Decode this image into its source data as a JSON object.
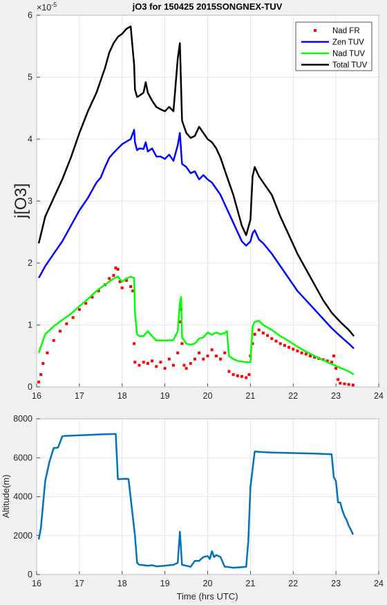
{
  "chart_data": [
    {
      "type": "line",
      "title": "jO3 for 150425 2015SONGNEX-TUV",
      "ylabel": "j[O3]",
      "xlabel": "",
      "y_exponent_label": "×10",
      "y_exponent": "-5",
      "xlim": [
        16,
        24
      ],
      "ylim": [
        0,
        6
      ],
      "x_ticks": [
        16,
        17,
        18,
        19,
        20,
        21,
        22,
        23,
        24
      ],
      "y_ticks": [
        0,
        1,
        2,
        3,
        4,
        5,
        6
      ],
      "grid": true,
      "legend_position": "top-right",
      "series": [
        {
          "name": "Nad FR",
          "style": "markers",
          "color": "#ff0000",
          "x": [
            16.05,
            16.1,
            16.15,
            16.25,
            16.4,
            16.55,
            16.7,
            16.85,
            17.0,
            17.15,
            17.3,
            17.45,
            17.6,
            17.7,
            17.8,
            17.85,
            17.9,
            17.95,
            18.0,
            18.1,
            18.2,
            18.25,
            18.28,
            18.3,
            18.4,
            18.5,
            18.6,
            18.7,
            18.8,
            18.9,
            19.0,
            19.1,
            19.2,
            19.3,
            19.35,
            19.38,
            19.4,
            19.45,
            19.5,
            19.6,
            19.7,
            19.8,
            19.9,
            20.0,
            20.1,
            20.2,
            20.3,
            20.4,
            20.5,
            20.6,
            20.7,
            20.8,
            20.9,
            20.97,
            21.0,
            21.05,
            21.1,
            21.2,
            21.3,
            21.4,
            21.5,
            21.6,
            21.7,
            21.8,
            21.9,
            22.0,
            22.1,
            22.2,
            22.3,
            22.4,
            22.5,
            22.6,
            22.7,
            22.8,
            22.9,
            22.95,
            23.0,
            23.05,
            23.1,
            23.2,
            23.3,
            23.4
          ],
          "y": [
            0.08,
            0.2,
            0.38,
            0.55,
            0.75,
            0.9,
            1.02,
            1.12,
            1.25,
            1.35,
            1.45,
            1.55,
            1.65,
            1.75,
            1.8,
            1.92,
            1.9,
            1.7,
            1.6,
            1.72,
            1.62,
            1.55,
            0.7,
            0.4,
            0.35,
            0.4,
            0.38,
            0.42,
            0.33,
            0.4,
            0.3,
            0.45,
            0.35,
            0.55,
            1.05,
            1.25,
            0.7,
            0.35,
            0.3,
            0.38,
            0.45,
            0.55,
            0.45,
            0.5,
            0.6,
            0.5,
            0.45,
            0.55,
            0.25,
            0.2,
            0.18,
            0.17,
            0.15,
            0.2,
            0.5,
            0.7,
            0.85,
            0.92,
            0.87,
            0.83,
            0.78,
            0.74,
            0.7,
            0.67,
            0.64,
            0.61,
            0.58,
            0.55,
            0.53,
            0.5,
            0.48,
            0.46,
            0.44,
            0.42,
            0.4,
            0.5,
            0.3,
            0.12,
            0.06,
            0.05,
            0.04,
            0.03
          ]
        },
        {
          "name": "Zen TUV",
          "style": "line",
          "color": "#0000ff",
          "x": [
            16.05,
            16.2,
            16.4,
            16.6,
            16.8,
            17.0,
            17.2,
            17.4,
            17.5,
            17.6,
            17.7,
            17.8,
            17.9,
            18.0,
            18.1,
            18.2,
            18.28,
            18.3,
            18.35,
            18.4,
            18.5,
            18.55,
            18.6,
            18.7,
            18.8,
            18.9,
            19.0,
            19.1,
            19.2,
            19.3,
            19.35,
            19.4,
            19.5,
            19.6,
            19.7,
            19.8,
            19.9,
            20.0,
            20.1,
            20.2,
            20.3,
            20.4,
            20.5,
            20.6,
            20.7,
            20.8,
            20.9,
            21.0,
            21.05,
            21.1,
            21.2,
            21.3,
            21.5,
            21.7,
            21.9,
            22.1,
            22.3,
            22.5,
            22.7,
            22.9,
            23.1,
            23.3,
            23.42
          ],
          "y": [
            1.76,
            1.95,
            2.15,
            2.35,
            2.6,
            2.85,
            3.05,
            3.3,
            3.38,
            3.55,
            3.7,
            3.78,
            3.85,
            3.92,
            3.96,
            4.0,
            4.15,
            3.95,
            3.82,
            3.85,
            3.84,
            3.95,
            3.8,
            3.85,
            3.72,
            3.72,
            3.68,
            3.75,
            3.65,
            3.9,
            4.1,
            3.6,
            3.55,
            3.45,
            3.48,
            3.35,
            3.42,
            3.35,
            3.3,
            3.2,
            3.1,
            2.95,
            2.8,
            2.65,
            2.5,
            2.35,
            2.28,
            2.35,
            2.48,
            2.53,
            2.38,
            2.32,
            2.15,
            1.95,
            1.75,
            1.55,
            1.4,
            1.25,
            1.1,
            0.95,
            0.82,
            0.7,
            0.62
          ]
        },
        {
          "name": "Nad TUV",
          "style": "line",
          "color": "#00ff00",
          "x": [
            16.05,
            16.2,
            16.4,
            16.6,
            16.8,
            17.0,
            17.2,
            17.4,
            17.6,
            17.8,
            17.9,
            18.0,
            18.1,
            18.2,
            18.28,
            18.3,
            18.35,
            18.4,
            18.5,
            18.6,
            18.7,
            18.8,
            18.9,
            19.0,
            19.1,
            19.2,
            19.3,
            19.35,
            19.38,
            19.4,
            19.5,
            19.6,
            19.7,
            19.8,
            19.9,
            20.0,
            20.1,
            20.2,
            20.3,
            20.4,
            20.45,
            20.5,
            20.6,
            20.7,
            20.8,
            20.9,
            21.0,
            21.05,
            21.1,
            21.2,
            21.3,
            21.5,
            21.7,
            21.9,
            22.1,
            22.3,
            22.5,
            22.7,
            22.9,
            23.1,
            23.3,
            23.42
          ],
          "y": [
            0.55,
            0.85,
            0.98,
            1.08,
            1.18,
            1.3,
            1.42,
            1.55,
            1.65,
            1.75,
            1.78,
            1.7,
            1.75,
            1.78,
            1.76,
            1.2,
            0.85,
            0.82,
            0.82,
            0.9,
            0.82,
            0.75,
            0.75,
            0.75,
            0.75,
            0.76,
            0.9,
            1.35,
            1.45,
            0.8,
            0.7,
            0.68,
            0.7,
            0.78,
            0.8,
            0.88,
            0.84,
            0.88,
            0.85,
            0.87,
            0.9,
            0.5,
            0.45,
            0.42,
            0.41,
            0.4,
            0.4,
            0.98,
            1.05,
            1.07,
            1.0,
            0.92,
            0.82,
            0.74,
            0.65,
            0.57,
            0.5,
            0.43,
            0.37,
            0.31,
            0.25,
            0.2
          ]
        },
        {
          "name": "Total TUV",
          "style": "line",
          "color": "#000000",
          "x": [
            16.05,
            16.2,
            16.4,
            16.6,
            16.8,
            17.0,
            17.2,
            17.4,
            17.5,
            17.6,
            17.7,
            17.8,
            17.9,
            18.0,
            18.1,
            18.2,
            18.28,
            18.3,
            18.35,
            18.4,
            18.5,
            18.55,
            18.6,
            18.7,
            18.8,
            18.9,
            19.0,
            19.1,
            19.2,
            19.3,
            19.35,
            19.4,
            19.5,
            19.6,
            19.7,
            19.8,
            19.9,
            20.0,
            20.1,
            20.2,
            20.3,
            20.4,
            20.5,
            20.6,
            20.7,
            20.8,
            20.9,
            21.0,
            21.05,
            21.1,
            21.2,
            21.3,
            21.5,
            21.7,
            21.9,
            22.1,
            22.3,
            22.5,
            22.7,
            22.9,
            23.1,
            23.3,
            23.42
          ],
          "y": [
            2.32,
            2.75,
            3.05,
            3.35,
            3.7,
            4.1,
            4.45,
            4.75,
            4.95,
            5.15,
            5.4,
            5.55,
            5.65,
            5.7,
            5.78,
            5.82,
            5.2,
            4.8,
            4.68,
            4.7,
            4.75,
            4.92,
            4.75,
            4.62,
            4.52,
            4.48,
            4.45,
            4.52,
            4.45,
            5.3,
            5.55,
            4.3,
            4.1,
            4.02,
            4.05,
            4.2,
            4.1,
            4.0,
            3.95,
            3.85,
            3.7,
            3.5,
            3.3,
            3.1,
            2.85,
            2.6,
            2.45,
            2.7,
            3.4,
            3.55,
            3.4,
            3.3,
            3.1,
            2.75,
            2.45,
            2.15,
            1.9,
            1.65,
            1.4,
            1.2,
            1.05,
            0.92,
            0.82
          ]
        }
      ]
    },
    {
      "type": "line",
      "title": "",
      "xlabel": "Time (hrs UTC)",
      "ylabel": "Altitude(m)",
      "xlim": [
        16,
        24
      ],
      "ylim": [
        0,
        8000
      ],
      "x_ticks": [
        16,
        17,
        18,
        19,
        20,
        21,
        22,
        23,
        24
      ],
      "y_ticks": [
        0,
        2000,
        4000,
        6000,
        8000
      ],
      "grid": true,
      "series": [
        {
          "color": "#0072bd",
          "x": [
            16.05,
            16.1,
            16.15,
            16.2,
            16.3,
            16.4,
            16.5,
            16.55,
            16.6,
            16.65,
            17.0,
            17.5,
            17.85,
            17.9,
            18.1,
            18.15,
            18.3,
            18.35,
            18.4,
            18.5,
            18.6,
            18.7,
            18.8,
            19.0,
            19.2,
            19.3,
            19.35,
            19.4,
            19.5,
            19.6,
            19.7,
            19.8,
            19.9,
            20.0,
            20.05,
            20.1,
            20.15,
            20.2,
            20.3,
            20.4,
            20.45,
            20.5,
            20.6,
            20.8,
            20.9,
            20.95,
            21.0,
            21.1,
            21.2,
            21.5,
            22.0,
            22.5,
            22.9,
            22.95,
            23.0,
            23.05,
            23.1,
            23.15,
            23.2,
            23.25,
            23.3,
            23.35,
            23.4
          ],
          "y": [
            1800,
            2400,
            3600,
            4800,
            5800,
            6500,
            6520,
            6800,
            7100,
            7120,
            7150,
            7200,
            7220,
            4900,
            4920,
            4900,
            2000,
            600,
            500,
            480,
            450,
            480,
            420,
            450,
            500,
            600,
            2200,
            500,
            450,
            400,
            700,
            700,
            900,
            950,
            800,
            1200,
            900,
            1000,
            900,
            400,
            400,
            380,
            350,
            380,
            400,
            1700,
            4500,
            6320,
            6300,
            6270,
            6240,
            6210,
            6180,
            5000,
            4800,
            3700,
            3700,
            3300,
            3000,
            2800,
            2500,
            2300,
            2050
          ]
        }
      ]
    }
  ]
}
